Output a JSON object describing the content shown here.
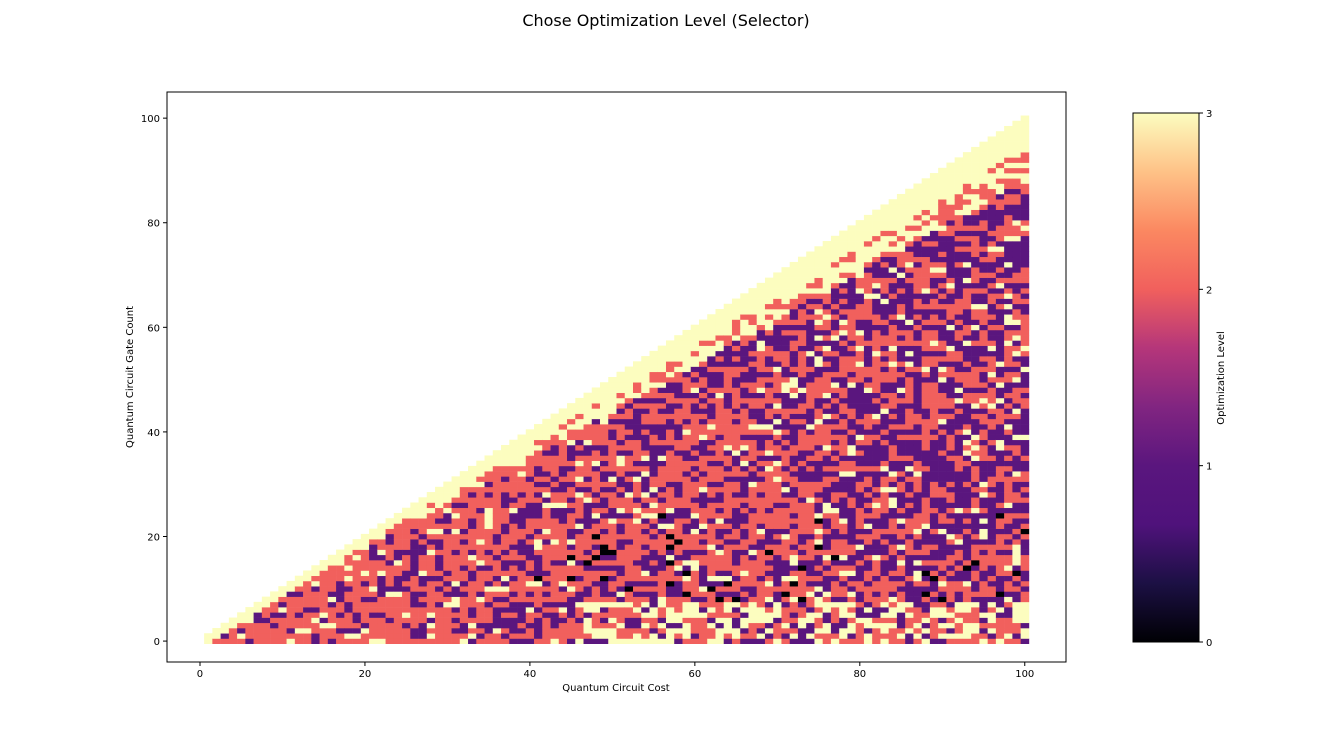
{
  "figure": {
    "title": "Chose Optimization Level (Selector)"
  },
  "chart_data": {
    "type": "heatmap",
    "title": "Chose Optimization Level (Selector)",
    "xlabel": "Quantum Circuit Cost",
    "ylabel": "Quantum Circuit Gate Count",
    "xlim": [
      -4,
      105
    ],
    "ylim": [
      -4,
      105
    ],
    "x_ticks": [
      0,
      20,
      40,
      60,
      80,
      100
    ],
    "y_ticks": [
      0,
      20,
      40,
      60,
      80,
      100
    ],
    "grid": false,
    "cell_domain": "cells exist for cost x from 1 to 100 and gate count y from 0 to x; empty elsewhere",
    "approximate_level_pattern": [
      {
        "region": "upper edge band (y close to x)",
        "value": 3
      },
      {
        "region": "interior of triangle",
        "values": [
          1,
          2
        ],
        "note": "mixed, level 2 most common"
      },
      {
        "region": "scattered cells, mostly y 5-25, x 40-100",
        "value": 0
      },
      {
        "region": "bottom fringe (y < ~8), x > 45",
        "values": [
          2,
          3
        ],
        "note": "mixed"
      }
    ],
    "colorbar": {
      "label": "Optimization Level",
      "min": 0,
      "max": 3,
      "ticks": [
        0,
        1,
        2,
        3
      ],
      "colormap": "magma",
      "colors": {
        "0": "#000004",
        "1": "#5a167e",
        "2": "#f1605d",
        "3": "#fcfdbf"
      }
    }
  }
}
